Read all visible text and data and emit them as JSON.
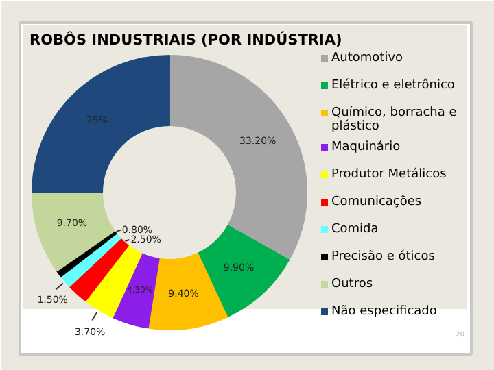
{
  "chart_data": {
    "type": "donut",
    "title": "ROBÔS INDUSTRIAIS (POR INDÚSTRIA)",
    "categories": [
      "Automotivo",
      "Elétrico e eletrônico",
      "Químico, borracha e plástico",
      "Maquinário",
      "Produtor Metálicos",
      "Comunicações",
      "Comida",
      "Precisão e óticos",
      "Outros",
      "Não especificado"
    ],
    "values": [
      33.2,
      9.9,
      9.4,
      4.3,
      3.7,
      2.5,
      1.5,
      0.8,
      9.7,
      25
    ],
    "colors": [
      "#a6a6a6",
      "#00b050",
      "#ffc000",
      "#8b1ee8",
      "#ffff00",
      "#ff0000",
      "#66ffff",
      "#000000",
      "#c3d69b",
      "#1f497d"
    ],
    "value_labels": [
      "33.20%",
      "9.90%",
      "9.40%",
      "4.30%",
      "3.70%",
      "2.50%",
      "1.50%",
      "0.80%",
      "9.70%",
      "25%"
    ],
    "legend": "right",
    "annotations": [
      "20"
    ]
  }
}
